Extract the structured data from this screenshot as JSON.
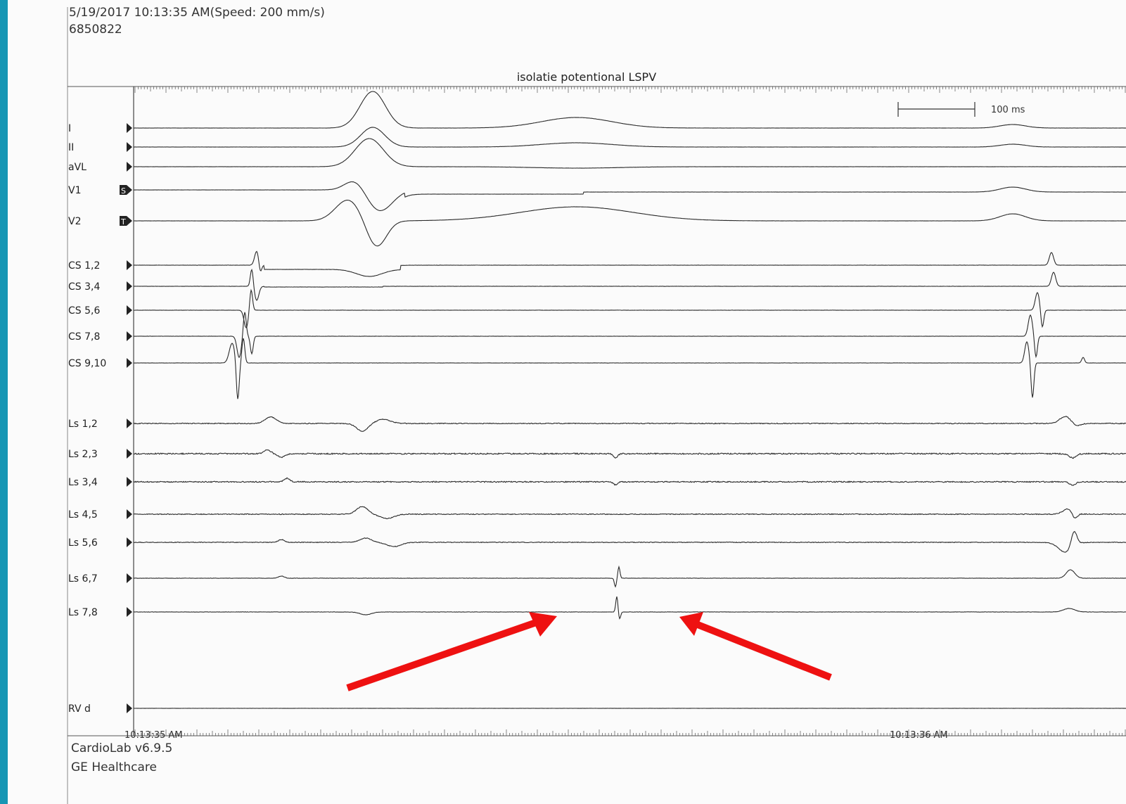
{
  "header": {
    "timestamp_speed": "5/19/2017 10:13:35 AM(Speed: 200 mm/s)",
    "patient_id": "6850822"
  },
  "recording_title": "isolatie potentional LSPV",
  "scale_bar_label": "100 ms",
  "channels": [
    {
      "label": "I",
      "marker": ""
    },
    {
      "label": "II",
      "marker": ""
    },
    {
      "label": "aVL",
      "marker": ""
    },
    {
      "label": "V1",
      "marker": "S"
    },
    {
      "label": "V2",
      "marker": "T"
    },
    {
      "label": "CS 1,2",
      "marker": ""
    },
    {
      "label": "CS 3,4",
      "marker": ""
    },
    {
      "label": "CS 5,6",
      "marker": ""
    },
    {
      "label": "CS 7,8",
      "marker": ""
    },
    {
      "label": "CS 9,10",
      "marker": ""
    },
    {
      "label": "Ls 1,2",
      "marker": ""
    },
    {
      "label": "Ls 2,3",
      "marker": ""
    },
    {
      "label": "Ls 3,4",
      "marker": ""
    },
    {
      "label": "Ls 4,5",
      "marker": ""
    },
    {
      "label": "Ls 5,6",
      "marker": ""
    },
    {
      "label": "Ls 6,7",
      "marker": ""
    },
    {
      "label": "Ls 7,8",
      "marker": ""
    },
    {
      "label": "RV d",
      "marker": ""
    }
  ],
  "time_axis": {
    "start_label": "10:13:35 AM",
    "mid_label": "10:13:36 AM"
  },
  "footer": {
    "software": "CardioLab v6.9.5",
    "vendor": "GE Healthcare"
  },
  "colors": {
    "background": "#1696b4",
    "paper": "#fbfbfb",
    "trace": "#2a2a2a",
    "annotation_arrow": "#ee1111"
  },
  "annotations": [
    {
      "type": "arrow",
      "icon": "red-arrow-icon",
      "points_to": "Ls 7,8 isolation potential"
    },
    {
      "type": "arrow",
      "icon": "red-arrow-icon",
      "points_to": "Ls 7,8 isolation potential"
    }
  ]
}
